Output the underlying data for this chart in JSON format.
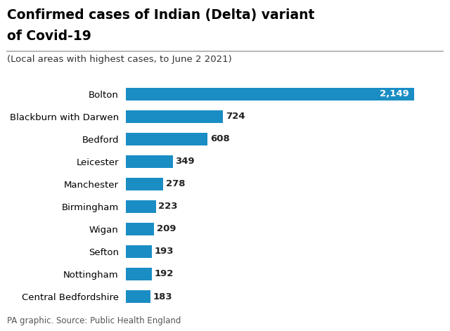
{
  "title_line1": "Confirmed cases of Indian (Delta) variant",
  "title_line2": "of Covid-19",
  "subtitle": "(Local areas with highest cases, to June 2 2021)",
  "footer": "PA graphic. Source: Public Health England",
  "categories": [
    "Bolton",
    "Blackburn with Darwen",
    "Bedford",
    "Leicester",
    "Manchester",
    "Birmingham",
    "Wigan",
    "Sefton",
    "Nottingham",
    "Central Bedfordshire"
  ],
  "values": [
    2149,
    724,
    608,
    349,
    278,
    223,
    209,
    193,
    192,
    183
  ],
  "bar_color": "#1a8dc4",
  "value_color_inside": "#ffffff",
  "value_color_outside": "#222222",
  "background_color": "#ffffff",
  "title_color": "#000000",
  "subtitle_color": "#333333",
  "footer_color": "#555555",
  "line_color": "#aaaaaa",
  "xlim": [
    0,
    2280
  ]
}
